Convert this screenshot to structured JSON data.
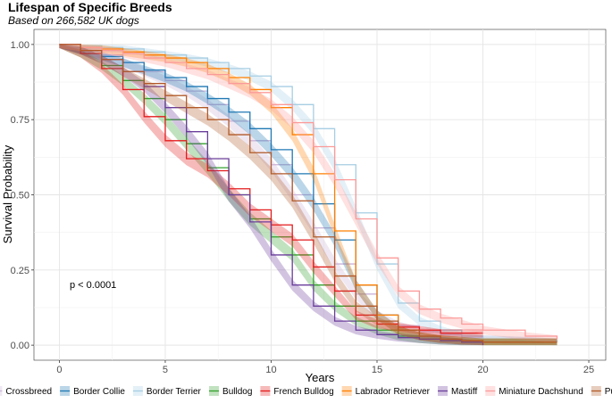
{
  "chart_data": {
    "type": "line",
    "title": "Lifespan of Specific Breeds",
    "subtitle": "Based on 266,582 UK dogs",
    "xlabel": "Years",
    "ylabel": "Survival Probability",
    "xlim": [
      -1.2,
      25.8
    ],
    "ylim": [
      -0.05,
      1.05
    ],
    "xticks": [
      0,
      5,
      10,
      15,
      20,
      25
    ],
    "yticks": [
      0.0,
      0.25,
      0.5,
      0.75,
      1.0
    ],
    "ytick_labels": [
      "0.00",
      "0.25",
      "0.50",
      "0.75",
      "1.00"
    ],
    "grid": true,
    "legend_position": "bottom",
    "annotation": "p < 0.0001",
    "series": [
      {
        "name": "Crossbreed",
        "color": "#cab2d6",
        "x": [
          0,
          1,
          2,
          3,
          4,
          5,
          6,
          7,
          8,
          9,
          10,
          11,
          12,
          13,
          14,
          15,
          16,
          17,
          18,
          19,
          20,
          22,
          23.5
        ],
        "y": [
          1.0,
          0.985,
          0.965,
          0.94,
          0.91,
          0.88,
          0.845,
          0.8,
          0.745,
          0.68,
          0.6,
          0.5,
          0.39,
          0.27,
          0.17,
          0.1,
          0.065,
          0.045,
          0.035,
          0.025,
          0.02,
          0.015,
          0.01
        ]
      },
      {
        "name": "Border Collie",
        "color": "#1f78b4",
        "x": [
          0,
          1,
          2,
          3,
          4,
          5,
          6,
          7,
          8,
          9,
          10,
          11,
          12,
          13,
          14,
          15,
          16,
          17,
          18,
          19,
          20,
          22,
          23.5
        ],
        "y": [
          1.0,
          0.98,
          0.96,
          0.94,
          0.915,
          0.89,
          0.86,
          0.82,
          0.775,
          0.72,
          0.65,
          0.57,
          0.47,
          0.35,
          0.2,
          0.1,
          0.05,
          0.03,
          0.02,
          0.015,
          0.01,
          0.01,
          0.01
        ]
      },
      {
        "name": "Border Terrier",
        "color": "#a6cee3",
        "x": [
          0,
          1,
          2,
          3,
          4,
          5,
          6,
          7,
          8,
          9,
          10,
          11,
          12,
          13,
          14,
          15,
          16,
          17,
          18,
          19,
          20,
          22,
          23.5
        ],
        "y": [
          1.0,
          0.995,
          0.99,
          0.985,
          0.975,
          0.965,
          0.955,
          0.94,
          0.92,
          0.895,
          0.86,
          0.8,
          0.72,
          0.6,
          0.44,
          0.27,
          0.14,
          0.08,
          0.05,
          0.03,
          0.02,
          0.015,
          0.01
        ]
      },
      {
        "name": "Bulldog",
        "color": "#33a02c",
        "x": [
          0,
          1,
          2,
          3,
          4,
          5,
          6,
          7,
          8,
          9,
          10,
          11,
          12,
          13,
          14,
          15,
          16,
          17,
          18,
          19,
          20,
          22,
          23.5
        ],
        "y": [
          1.0,
          0.97,
          0.93,
          0.88,
          0.82,
          0.75,
          0.67,
          0.59,
          0.5,
          0.42,
          0.36,
          0.3,
          0.2,
          0.13,
          0.08,
          0.05,
          0.03,
          0.02,
          0.015,
          0.01,
          0.01,
          0.01,
          0.01
        ]
      },
      {
        "name": "French Bulldog",
        "color": "#e31a1c",
        "x": [
          0,
          1,
          2,
          3,
          4,
          5,
          6,
          7,
          8,
          9,
          10,
          11,
          12,
          13,
          14,
          15,
          16,
          17,
          18,
          19,
          20
        ],
        "y": [
          1.0,
          0.97,
          0.92,
          0.85,
          0.76,
          0.68,
          0.62,
          0.58,
          0.52,
          0.45,
          0.4,
          0.35,
          0.26,
          0.18,
          0.1,
          0.07,
          0.06,
          0.05,
          0.04,
          0.04,
          0.04
        ]
      },
      {
        "name": "Labrador Retriever",
        "color": "#ff7f00",
        "x": [
          0,
          1,
          2,
          3,
          4,
          5,
          6,
          7,
          8,
          9,
          10,
          11,
          12,
          13,
          14,
          15,
          16,
          17,
          18,
          19,
          20,
          22,
          23.5
        ],
        "y": [
          1.0,
          0.99,
          0.985,
          0.975,
          0.965,
          0.955,
          0.94,
          0.92,
          0.89,
          0.85,
          0.79,
          0.7,
          0.57,
          0.38,
          0.2,
          0.1,
          0.05,
          0.03,
          0.02,
          0.015,
          0.01,
          0.01,
          0.01
        ]
      },
      {
        "name": "Mastiff",
        "color": "#6a3d9a",
        "x": [
          0,
          1,
          2,
          3,
          4,
          5,
          6,
          7,
          8,
          9,
          10,
          11,
          12,
          13,
          14,
          15,
          16,
          17,
          18,
          19,
          20
        ],
        "y": [
          1.0,
          0.98,
          0.95,
          0.91,
          0.86,
          0.79,
          0.71,
          0.62,
          0.5,
          0.41,
          0.3,
          0.2,
          0.13,
          0.08,
          0.05,
          0.035,
          0.025,
          0.02,
          0.015,
          0.01,
          0.0
        ]
      },
      {
        "name": "Miniature Dachshund",
        "color": "#fb9a99",
        "x": [
          0,
          1,
          2,
          3,
          4,
          5,
          6,
          7,
          8,
          9,
          10,
          11,
          12,
          13,
          14,
          15,
          16,
          17,
          18,
          19,
          20,
          22,
          23.5
        ],
        "y": [
          1.0,
          0.99,
          0.98,
          0.97,
          0.955,
          0.94,
          0.92,
          0.9,
          0.87,
          0.84,
          0.8,
          0.74,
          0.66,
          0.55,
          0.42,
          0.29,
          0.18,
          0.12,
          0.09,
          0.07,
          0.05,
          0.03,
          0.02
        ]
      },
      {
        "name": "Pug",
        "color": "#b15928",
        "x": [
          0,
          1,
          2,
          3,
          4,
          5,
          6,
          7,
          8,
          9,
          10,
          11,
          12,
          13,
          14,
          15,
          16,
          17,
          18,
          19,
          20,
          22,
          23.5
        ],
        "y": [
          1.0,
          0.98,
          0.95,
          0.91,
          0.87,
          0.83,
          0.79,
          0.75,
          0.7,
          0.64,
          0.57,
          0.48,
          0.36,
          0.23,
          0.13,
          0.08,
          0.05,
          0.03,
          0.02,
          0.015,
          0.01,
          0.01,
          0.01
        ]
      }
    ]
  }
}
